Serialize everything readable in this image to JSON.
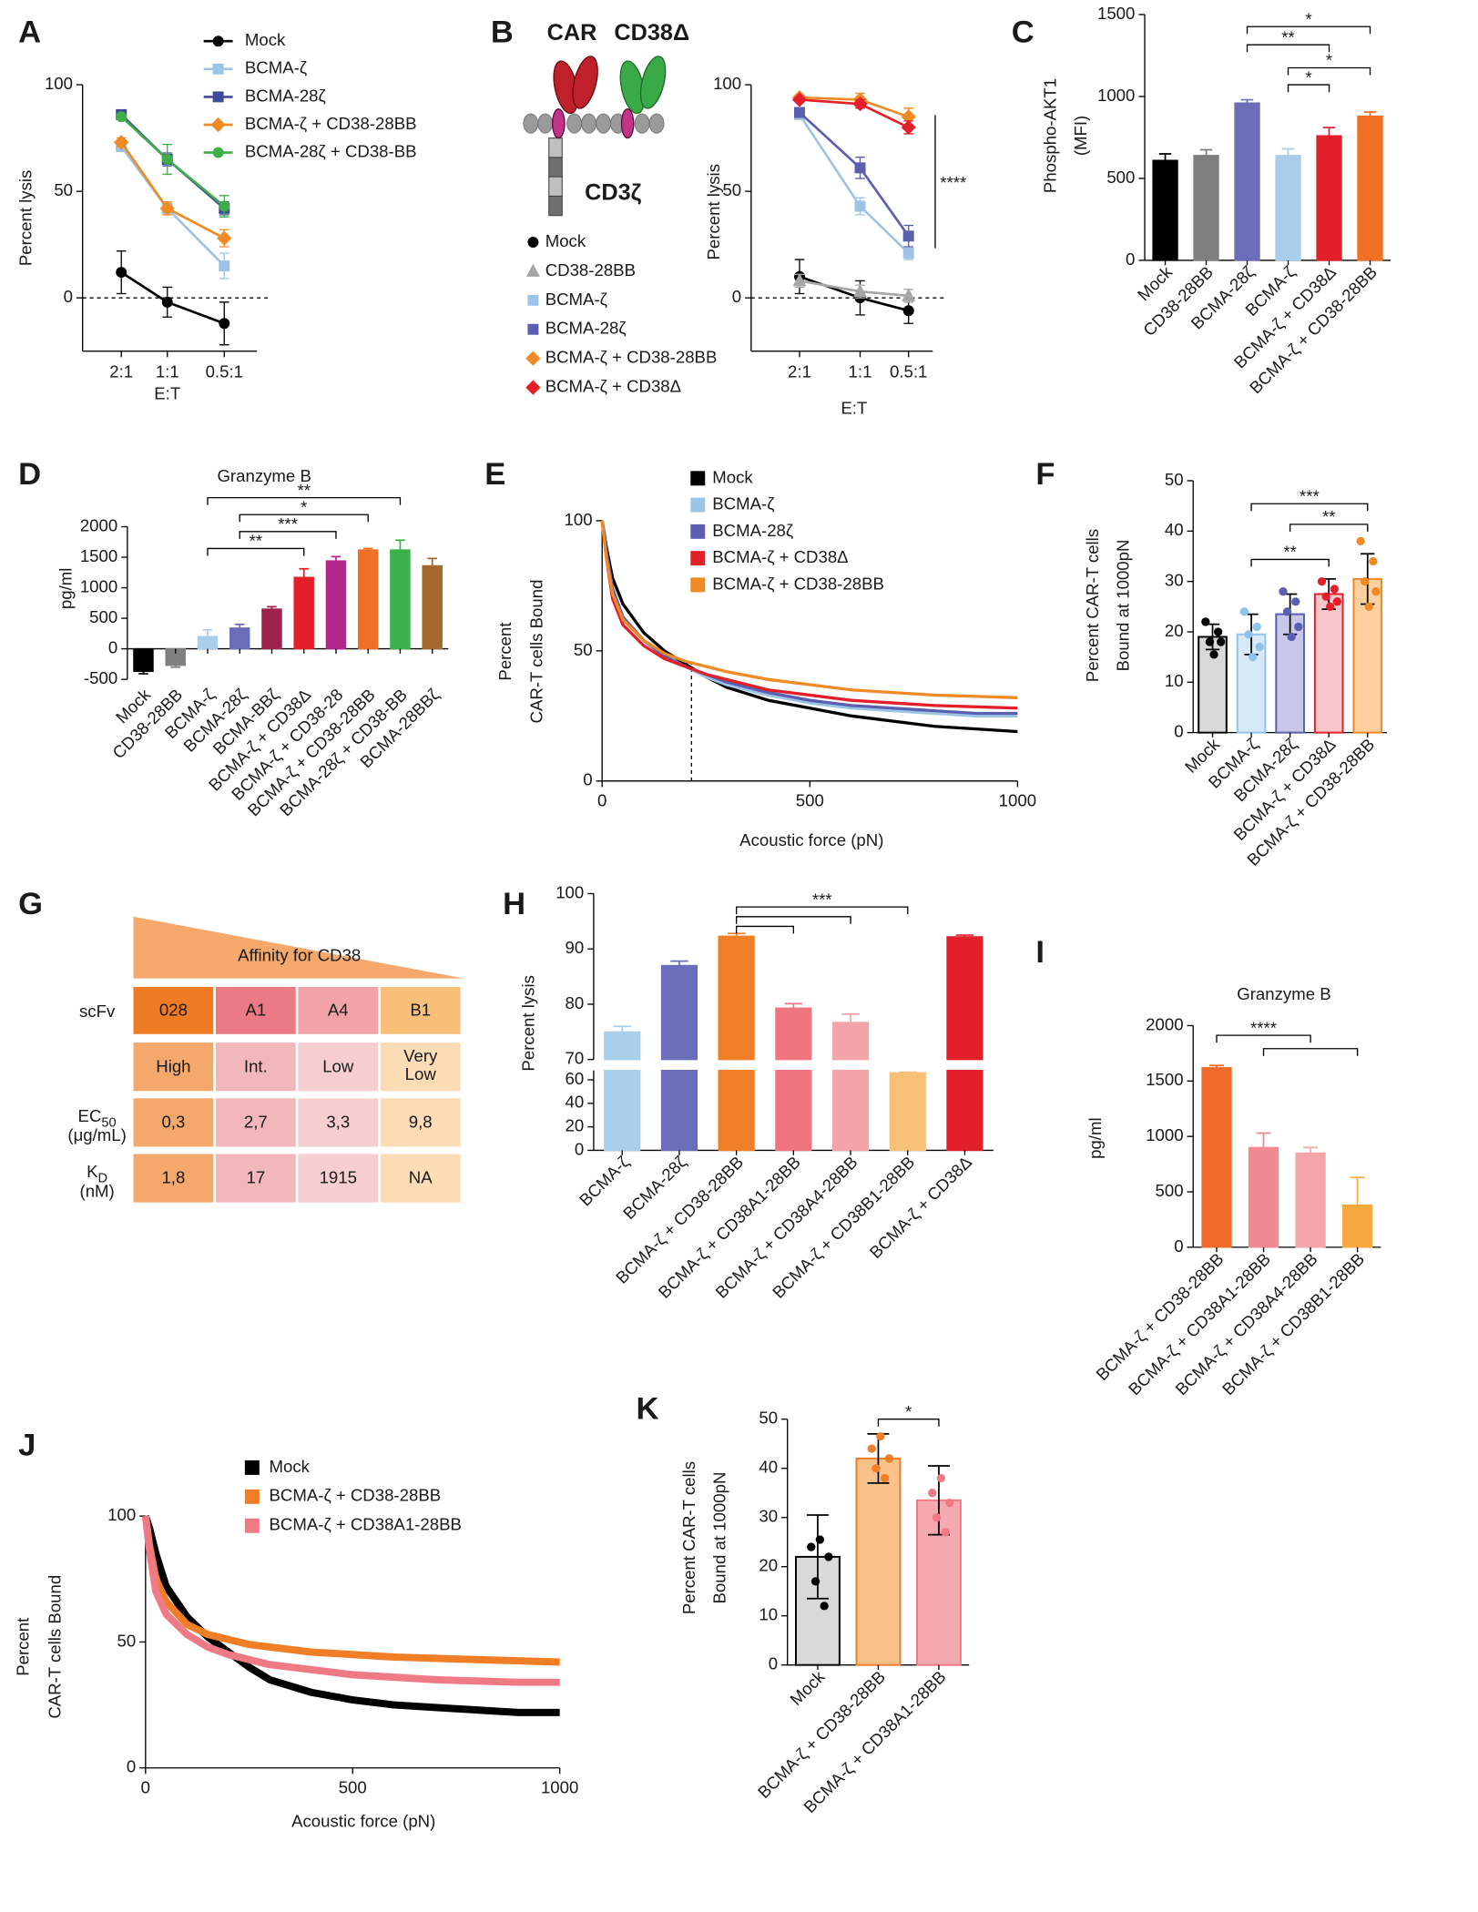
{
  "chart_data": [
    {
      "type": "line",
      "panel": "A",
      "categories": [
        "2:1",
        "1:1",
        "0.5:1"
      ],
      "xlabel": "E:T",
      "ylabel": "Percent lysis",
      "ylim": [
        -25,
        100
      ],
      "yticks": [
        0,
        50,
        100
      ],
      "zero_line": true,
      "series": [
        {
          "name": "Mock",
          "color": "#000000",
          "marker": "circle",
          "values": [
            12,
            -2,
            -12
          ],
          "errors": [
            10,
            7,
            10
          ]
        },
        {
          "name": "BCMA-ζ",
          "color": "#9dc3e6",
          "marker": "square",
          "values": [
            71,
            42,
            15
          ],
          "errors": [
            2,
            3,
            6
          ]
        },
        {
          "name": "BCMA-28ζ",
          "color": "#3f4a9c",
          "marker": "square",
          "values": [
            86,
            65,
            42
          ],
          "errors": [
            1,
            3,
            3
          ]
        },
        {
          "name": "BCMA-ζ + CD38-28BB",
          "color": "#f08a24",
          "marker": "diamond",
          "values": [
            73,
            42,
            28
          ],
          "errors": [
            2,
            3,
            4
          ]
        },
        {
          "name": "BCMA-28ζ + CD38-BB",
          "color": "#3fae49",
          "marker": "circle",
          "values": [
            85,
            65,
            43
          ],
          "errors": [
            1,
            7,
            5
          ]
        }
      ]
    },
    {
      "type": "line",
      "panel": "B",
      "categories": [
        "2:1",
        "1:1",
        "0.5:1"
      ],
      "xlabel": "E:T",
      "ylabel": "Percent lysis",
      "ylim": [
        -25,
        100
      ],
      "yticks": [
        0,
        50,
        100
      ],
      "zero_line": true,
      "diagram_labels": [
        "CAR",
        "CD38Δ",
        "CD3ζ"
      ],
      "annotations": [
        "****"
      ],
      "series": [
        {
          "name": "Mock",
          "color": "#000000",
          "marker": "circle",
          "values": [
            10,
            0,
            -6
          ],
          "errors": [
            8,
            8,
            6
          ]
        },
        {
          "name": "CD38-28BB",
          "color": "#a6a6a6",
          "marker": "triangle",
          "values": [
            8,
            3,
            1
          ],
          "errors": [
            3,
            3,
            3
          ]
        },
        {
          "name": "BCMA-ζ",
          "color": "#9dc3e6",
          "marker": "square",
          "values": [
            86,
            43,
            21
          ],
          "errors": [
            2,
            4,
            3
          ]
        },
        {
          "name": "BCMA-28ζ",
          "color": "#5b5fb0",
          "marker": "square",
          "values": [
            87,
            61,
            29
          ],
          "errors": [
            2,
            5,
            5
          ]
        },
        {
          "name": "BCMA-ζ + CD38-28BB",
          "color": "#f08a24",
          "marker": "diamond",
          "values": [
            94,
            93,
            85
          ],
          "errors": [
            1,
            3,
            4
          ]
        },
        {
          "name": "BCMA-ζ + CD38Δ",
          "color": "#e3202a",
          "marker": "diamond",
          "values": [
            93,
            91,
            80
          ],
          "errors": [
            1,
            2,
            3
          ]
        }
      ]
    },
    {
      "type": "bar",
      "panel": "C",
      "ylabel": [
        "Phospho-AKT1",
        "(MFI)"
      ],
      "ylim": [
        0,
        1500
      ],
      "yticks": [
        0,
        500,
        1000,
        1500
      ],
      "categories": [
        "Mock",
        "CD38-28BB",
        "BCMA-28ζ",
        "BCMA-ζ",
        "BCMA-ζ + CD38Δ",
        "BCMA-ζ + CD38-28BB"
      ],
      "values": [
        610,
        640,
        960,
        640,
        760,
        880
      ],
      "errors": [
        40,
        35,
        20,
        40,
        50,
        25
      ],
      "colors": [
        "#000000",
        "#7f7f7f",
        "#6a6db8",
        "#a9cdea",
        "#e3202a",
        "#f07026"
      ],
      "annotations": [
        "*",
        "**",
        "*",
        "*"
      ]
    },
    {
      "type": "bar",
      "panel": "D",
      "title": "Granzyme B",
      "ylabel": "pg/ml",
      "ylim": [
        -500,
        2000
      ],
      "yticks": [
        -500,
        0,
        500,
        1000,
        1500,
        2000
      ],
      "categories": [
        "Mock",
        "CD38-28BB",
        "BCMA-ζ",
        "BCMA-28ζ",
        "BCMA-BBζ",
        "BCMA-ζ + CD38Δ",
        "BCMA-ζ + CD38-28",
        "BCMA-ζ + CD38-28BB",
        "BCMA-28ζ + CD38-BB",
        "BCMA-28BBζ"
      ],
      "values": [
        -370,
        -270,
        200,
        340,
        650,
        1170,
        1440,
        1620,
        1620,
        1360
      ],
      "errors": [
        40,
        30,
        110,
        60,
        40,
        140,
        70,
        25,
        160,
        120
      ],
      "colors": [
        "#000000",
        "#7f7f7f",
        "#a9cdea",
        "#6a6db8",
        "#a0234b",
        "#e3202a",
        "#b2278c",
        "#f07026",
        "#3bb34a",
        "#a3692c"
      ],
      "annotations": [
        "**",
        "*",
        "***",
        "**"
      ]
    },
    {
      "type": "line",
      "panel": "E",
      "xlabel": "Acoustic force (pN)",
      "ylabel": [
        "Percent",
        "CAR-T cells Bound"
      ],
      "xlim": [
        0,
        1000
      ],
      "xticks": [
        0,
        500,
        1000
      ],
      "ylim": [
        0,
        100
      ],
      "yticks": [
        0,
        50,
        100
      ],
      "reference_x": 215,
      "x": [
        0,
        10,
        25,
        50,
        100,
        150,
        200,
        250,
        300,
        400,
        500,
        600,
        700,
        800,
        900,
        1000
      ],
      "series": [
        {
          "name": "Mock",
          "color": "#000000",
          "values": [
            100,
            90,
            78,
            68,
            57,
            50,
            45,
            40,
            36,
            31,
            28,
            25,
            23,
            21,
            20,
            19
          ]
        },
        {
          "name": "BCMA-ζ",
          "color": "#9dc3e6",
          "values": [
            100,
            88,
            74,
            63,
            54,
            48,
            44,
            40,
            37,
            33,
            30,
            28,
            27,
            26,
            25,
            25
          ]
        },
        {
          "name": "BCMA-28ζ",
          "color": "#5b5fb0",
          "values": [
            100,
            88,
            74,
            63,
            54,
            48,
            44,
            41,
            38,
            34,
            31,
            29,
            28,
            27,
            26,
            26
          ]
        },
        {
          "name": "BCMA-ζ + CD38Δ",
          "color": "#e3202a",
          "values": [
            100,
            86,
            70,
            60,
            52,
            47,
            44,
            41,
            39,
            35,
            33,
            31,
            30,
            29,
            28.5,
            28
          ]
        },
        {
          "name": "BCMA-ζ + CD38-28BB",
          "color": "#f08a24",
          "values": [
            100,
            86,
            72,
            62,
            54,
            49,
            46,
            44,
            42,
            39,
            37,
            35,
            34,
            33,
            32.5,
            32
          ]
        }
      ]
    },
    {
      "type": "bar",
      "panel": "F",
      "ylabel": [
        "Percent CAR-T cells",
        "Bound at 1000pN"
      ],
      "ylim": [
        0,
        50
      ],
      "yticks": [
        0,
        10,
        20,
        30,
        40,
        50
      ],
      "categories": [
        "Mock",
        "BCMA-ζ",
        "BCMA-28ζ",
        "BCMA-ζ + CD38Δ",
        "BCMA-ζ + CD38-28BB"
      ],
      "values": [
        19,
        19.5,
        23.5,
        27.5,
        30.5
      ],
      "errors": [
        2.5,
        4,
        4,
        3,
        5
      ],
      "points": [
        [
          22,
          20,
          18,
          18,
          15.5
        ],
        [
          24,
          21,
          19.5,
          17,
          15
        ],
        [
          28,
          26,
          24,
          21,
          19
        ],
        [
          30,
          28.5,
          27,
          26,
          25
        ],
        [
          38,
          34,
          30,
          28,
          25
        ]
      ],
      "colors": [
        "#d9d9d9",
        "#d7e9f7",
        "#c7c8e7",
        "#f7c6cb",
        "#fbd09f"
      ],
      "edge_colors": [
        "#000000",
        "#8fc3ea",
        "#5a60b0",
        "#e3202a",
        "#f08a24"
      ],
      "annotations": [
        "***",
        "**",
        "**"
      ]
    },
    {
      "type": "table",
      "panel": "G",
      "title": "Affinity for CD38",
      "rows": [
        {
          "label": "scFv",
          "cells": [
            "028",
            "A1",
            "A4",
            "B1"
          ]
        },
        {
          "cells": [
            "High",
            "Int.",
            "Low",
            [
              "Very",
              "Low"
            ]
          ]
        },
        {
          "label": "EC",
          "label_sub": "50",
          "unit": "(μg/mL)",
          "cells": [
            "0,3",
            "2,7",
            "3,3",
            "9,8"
          ]
        },
        {
          "label": "K",
          "label_sub": "D",
          "unit": "(nM)",
          "cells": [
            "1,8",
            "17",
            "1915",
            "NA"
          ]
        }
      ]
    },
    {
      "type": "bar",
      "panel": "H",
      "ylabel": "Percent lysis",
      "ylim": [
        0,
        100
      ],
      "ybreak": [
        68,
        70
      ],
      "yticks": [
        0,
        20,
        40,
        60,
        70,
        80,
        90,
        100
      ],
      "categories": [
        "BCMA-ζ",
        "BCMA-28ζ",
        "BCMA-ζ + CD38-28BB",
        "BCMA-ζ + CD38A1-28BB",
        "BCMA-ζ + CD38A4-28BB",
        "BCMA-ζ + CD38B1-28BB",
        "BCMA-ζ + CD38Δ"
      ],
      "values": [
        75,
        87,
        92.3,
        79.3,
        76.7,
        66,
        92.2
      ],
      "errors": [
        1,
        0.8,
        0.5,
        0.8,
        1.5,
        0.5,
        0.3
      ],
      "colors": [
        "#aacfea",
        "#6a6db8",
        "#f07e26",
        "#ef7580",
        "#f3a4a9",
        "#f9c07a",
        "#e3202a"
      ],
      "annotations": [
        "***"
      ]
    },
    {
      "type": "bar",
      "panel": "I",
      "title": "Granzyme B",
      "ylabel": "pg/ml",
      "ylim": [
        0,
        2000
      ],
      "yticks": [
        0,
        500,
        1000,
        1500,
        2000
      ],
      "categories": [
        "BCMA-ζ + CD38-28BB",
        "BCMA-ζ + CD38A1-28BB",
        "BCMA-ζ + CD38A4-28BB",
        "BCMA-ζ + CD38B1-28BB"
      ],
      "values": [
        1620,
        900,
        850,
        380
      ],
      "errors": [
        20,
        130,
        50,
        250
      ],
      "colors": [
        "#ef6a2b",
        "#f08a90",
        "#f4a5aa",
        "#f7a940"
      ],
      "annotations": [
        "****"
      ]
    },
    {
      "type": "line",
      "panel": "J",
      "xlabel": "Acoustic force (pN)",
      "ylabel": [
        "Percent",
        "CAR-T cells Bound"
      ],
      "xlim": [
        0,
        1000
      ],
      "xticks": [
        0,
        500,
        1000
      ],
      "ylim": [
        0,
        100
      ],
      "yticks": [
        0,
        50,
        100
      ],
      "x": [
        0,
        10,
        25,
        50,
        100,
        150,
        200,
        250,
        300,
        400,
        500,
        600,
        700,
        800,
        900,
        1000
      ],
      "series": [
        {
          "name": "Mock",
          "color": "#000000",
          "values": [
            100,
            95,
            85,
            72,
            60,
            52,
            46,
            40,
            35,
            30,
            27,
            25,
            24,
            23,
            22,
            22
          ]
        },
        {
          "name": "BCMA-ζ + CD38-28BB",
          "color": "#f07e26",
          "values": [
            100,
            88,
            75,
            66,
            57,
            53,
            51,
            49,
            48,
            46,
            45,
            44,
            43.5,
            43,
            42.5,
            42
          ]
        },
        {
          "name": "BCMA-ζ + CD38A1-28BB",
          "color": "#ef7a86",
          "values": [
            100,
            86,
            70,
            61,
            53,
            48,
            45,
            43,
            41,
            39,
            37,
            36,
            35,
            34.5,
            34,
            34
          ]
        }
      ]
    },
    {
      "type": "bar",
      "panel": "K",
      "ylabel": [
        "Percent CAR-T cells",
        "Bound at 1000pN"
      ],
      "ylim": [
        0,
        50
      ],
      "yticks": [
        0,
        10,
        20,
        30,
        40,
        50
      ],
      "categories": [
        "Mock",
        "BCMA-ζ + CD38-28BB",
        "BCMA-ζ + CD38A1-28BB"
      ],
      "values": [
        22,
        42,
        33.5
      ],
      "errors": [
        8.5,
        5,
        7
      ],
      "points": [
        [
          25.5,
          24,
          22,
          17,
          12
        ],
        [
          46.5,
          44,
          42,
          40,
          38
        ],
        [
          38,
          35,
          33,
          30,
          27
        ]
      ],
      "colors": [
        "#d9d9d9",
        "#f9c28a",
        "#f5a9b0"
      ],
      "edge_colors": [
        "#000000",
        "#f07e26",
        "#ef7a86"
      ],
      "annotations": [
        "*"
      ]
    }
  ]
}
